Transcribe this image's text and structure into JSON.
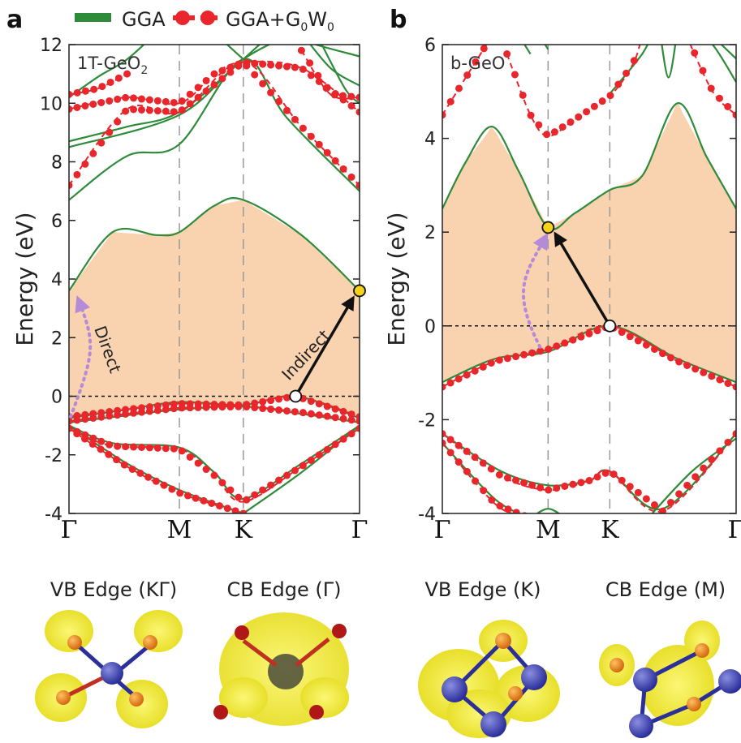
{
  "legend": {
    "gga": "GGA",
    "gw_main": "GGA+G",
    "gw_sub1": "0",
    "gw_mid": "W",
    "gw_sub2": "0"
  },
  "colors": {
    "gga": "#2e8b3a",
    "gw": "#e8262b",
    "gap_fill": "#f9d2b0",
    "arrow_direct": "#b58ad6",
    "cbm_marker": "#f5d21a"
  },
  "chart_data": [
    {
      "panel": "a",
      "type": "line",
      "label": "1T-GeO",
      "label_sub": "2",
      "ylabel": "Energy (eV)",
      "ylim": [
        -4,
        12
      ],
      "yticks": [
        -4,
        -2,
        0,
        2,
        4,
        6,
        8,
        10,
        12
      ],
      "kpoints": [
        {
          "label": "Γ",
          "x": 0
        },
        {
          "label": "M",
          "x": 0.38
        },
        {
          "label": "K",
          "x": 0.6
        },
        {
          "label": "Γ",
          "x": 1
        }
      ],
      "fermi_level": 0,
      "vbm": {
        "x": 0.78,
        "energy": 0
      },
      "cbm": {
        "x": 1,
        "energy": 3.6
      },
      "transitions": {
        "direct": "Direct",
        "indirect": "Indirect"
      },
      "series": [
        {
          "name": "GGA",
          "style": "solid",
          "bands": [
            [
              [
                0,
                -0.75
              ],
              [
                0.2,
                -0.45
              ],
              [
                0.38,
                -0.2
              ],
              [
                0.6,
                -0.3
              ],
              [
                0.78,
                0
              ],
              [
                1,
                -0.75
              ]
            ],
            [
              [
                0,
                -0.9
              ],
              [
                0.2,
                -0.65
              ],
              [
                0.38,
                -0.45
              ],
              [
                0.6,
                -0.35
              ],
              [
                0.8,
                -0.6
              ],
              [
                1,
                -0.9
              ]
            ],
            [
              [
                0,
                -1.0
              ],
              [
                0.15,
                -1.6
              ],
              [
                0.38,
                -1.75
              ],
              [
                0.5,
                -2.6
              ],
              [
                0.6,
                -3.5
              ],
              [
                0.8,
                -2.3
              ],
              [
                1,
                -1.0
              ]
            ],
            [
              [
                0,
                -1.0
              ],
              [
                0.2,
                -2.3
              ],
              [
                0.38,
                -3.2
              ],
              [
                0.6,
                -4.0
              ]
            ],
            [
              [
                0.6,
                -4.0
              ],
              [
                0.8,
                -2.6
              ],
              [
                1,
                -1.0
              ]
            ],
            [
              [
                0,
                3.6
              ],
              [
                0.15,
                5.6
              ],
              [
                0.3,
                5.5
              ],
              [
                0.38,
                5.6
              ],
              [
                0.5,
                6.5
              ],
              [
                0.6,
                6.7
              ],
              [
                0.8,
                5.5
              ],
              [
                1,
                3.6
              ]
            ],
            [
              [
                0,
                6.7
              ],
              [
                0.2,
                8.2
              ],
              [
                0.38,
                8.6
              ],
              [
                0.6,
                11.5
              ],
              [
                0.75,
                9.5
              ],
              [
                1,
                7.0
              ]
            ],
            [
              [
                0,
                8.5
              ],
              [
                0.38,
                9.6
              ],
              [
                0.6,
                11.5
              ],
              [
                0.8,
                12.5
              ]
            ],
            [
              [
                0,
                8.7
              ],
              [
                0.2,
                9.2
              ],
              [
                0.38,
                9.7
              ],
              [
                0.6,
                11.5
              ]
            ],
            [
              [
                0,
                10.2
              ],
              [
                0.1,
                10.9
              ],
              [
                0.2,
                11.5
              ],
              [
                0.3,
                12.4
              ]
            ],
            [
              [
                0.6,
                11.5
              ],
              [
                0.7,
                12.4
              ]
            ],
            [
              [
                0.6,
                11.5
              ],
              [
                0.5,
                12.4
              ]
            ],
            [
              [
                0.75,
                12.4
              ],
              [
                0.85,
                12.0
              ],
              [
                1,
                11.6
              ]
            ],
            [
              [
                0.8,
                12.4
              ],
              [
                0.9,
                11.2
              ],
              [
                1,
                10.6
              ]
            ],
            [
              [
                0.85,
                12.4
              ],
              [
                0.95,
                10.5
              ],
              [
                1,
                10.0
              ]
            ]
          ]
        },
        {
          "name": "GGA+G0W0",
          "style": "dashed-dots",
          "bands": [
            [
              [
                0,
                -0.7
              ],
              [
                0.2,
                -0.45
              ],
              [
                0.38,
                -0.25
              ],
              [
                0.6,
                -0.3
              ],
              [
                0.78,
                0
              ],
              [
                1,
                -0.7
              ]
            ],
            [
              [
                0,
                -0.85
              ],
              [
                0.2,
                -0.6
              ],
              [
                0.38,
                -0.4
              ],
              [
                0.6,
                -0.35
              ],
              [
                0.8,
                -0.55
              ],
              [
                1,
                -0.85
              ]
            ],
            [
              [
                0,
                -1.1
              ],
              [
                0.15,
                -1.7
              ],
              [
                0.38,
                -1.8
              ],
              [
                0.5,
                -2.7
              ],
              [
                0.6,
                -3.6
              ],
              [
                0.8,
                -2.4
              ],
              [
                1,
                -1.1
              ]
            ],
            [
              [
                0,
                -1.1
              ],
              [
                0.2,
                -2.4
              ],
              [
                0.38,
                -3.3
              ],
              [
                0.6,
                -4.0
              ]
            ],
            [
              [
                0,
                7.2
              ],
              [
                0.2,
                9.8
              ],
              [
                0.38,
                9.7
              ],
              [
                0.6,
                11.4
              ],
              [
                0.8,
                9.2
              ],
              [
                1,
                7.2
              ]
            ],
            [
              [
                0,
                9.8
              ],
              [
                0.2,
                10.2
              ],
              [
                0.38,
                10.0
              ],
              [
                0.5,
                11.0
              ],
              [
                0.6,
                11.4
              ],
              [
                0.8,
                11.2
              ],
              [
                1,
                9.7
              ]
            ],
            [
              [
                0,
                10.3
              ],
              [
                0.1,
                10.5
              ],
              [
                0.2,
                11.0
              ]
            ],
            [
              [
                0.8,
                11.8
              ],
              [
                0.9,
                10.3
              ],
              [
                1,
                10.2
              ]
            ]
          ]
        }
      ]
    },
    {
      "panel": "b",
      "type": "line",
      "label": "b-GeO",
      "ylabel": "Energy (eV)",
      "ylim": [
        -4,
        6
      ],
      "yticks": [
        -4,
        -2,
        0,
        2,
        4,
        6
      ],
      "kpoints": [
        {
          "label": "Γ",
          "x": 0
        },
        {
          "label": "M",
          "x": 0.36
        },
        {
          "label": "K",
          "x": 0.57
        },
        {
          "label": "Γ",
          "x": 1
        }
      ],
      "fermi_level": 0,
      "vbm": {
        "x": 0.57,
        "energy": 0
      },
      "cbm": {
        "x": 0.36,
        "energy": 2.1
      },
      "series": [
        {
          "name": "GGA",
          "style": "solid",
          "bands": [
            [
              [
                0,
                -1.2
              ],
              [
                0.18,
                -0.7
              ],
              [
                0.36,
                -0.55
              ],
              [
                0.57,
                0
              ],
              [
                0.8,
                -0.7
              ],
              [
                1,
                -1.2
              ]
            ],
            [
              [
                0,
                2.5
              ],
              [
                0.08,
                3.5
              ],
              [
                0.17,
                4.25
              ],
              [
                0.26,
                3.3
              ],
              [
                0.36,
                2.1
              ],
              [
                0.45,
                2.4
              ],
              [
                0.57,
                2.9
              ],
              [
                0.68,
                3.2
              ],
              [
                0.8,
                4.75
              ],
              [
                0.9,
                3.6
              ],
              [
                1,
                2.5
              ]
            ],
            [
              [
                0,
                -2.3
              ],
              [
                0.2,
                -3.1
              ],
              [
                0.36,
                -3.4
              ],
              [
                0.5,
                -3.3
              ],
              [
                0.57,
                -3.1
              ],
              [
                0.75,
                -3.9
              ],
              [
                1,
                -2.3
              ]
            ],
            [
              [
                0,
                -2.5
              ],
              [
                0.18,
                -3.7
              ],
              [
                0.3,
                -4.1
              ]
            ],
            [
              [
                0.7,
                -4.1
              ],
              [
                0.85,
                -3.1
              ],
              [
                1,
                -2.4
              ]
            ],
            [
              [
                0.3,
                -4.1
              ],
              [
                0.36,
                -3.9
              ],
              [
                0.42,
                -4.1
              ]
            ],
            [
              [
                0.57,
                4.95
              ],
              [
                0.68,
                5.8
              ],
              [
                0.72,
                6.3
              ]
            ],
            [
              [
                0.74,
                6.3
              ],
              [
                0.77,
                5.3
              ],
              [
                0.8,
                6.3
              ]
            ],
            [
              [
                0.85,
                6.3
              ],
              [
                0.92,
                6.0
              ],
              [
                1,
                5.2
              ]
            ],
            [
              [
                0.9,
                6.3
              ],
              [
                1,
                5.7
              ]
            ],
            [
              [
                0.25,
                6.3
              ],
              [
                0.3,
                5.8
              ]
            ],
            [
              [
                0.32,
                6.3
              ],
              [
                0.36,
                5.9
              ]
            ]
          ]
        },
        {
          "name": "GGA+G0W0",
          "style": "dashed-dots",
          "bands": [
            [
              [
                0,
                -1.3
              ],
              [
                0.18,
                -0.75
              ],
              [
                0.36,
                -0.5
              ],
              [
                0.57,
                0
              ],
              [
                0.8,
                -0.75
              ],
              [
                1,
                -1.3
              ]
            ],
            [
              [
                0,
                4.5
              ],
              [
                0.1,
                5.5
              ],
              [
                0.17,
                6.2
              ]
            ],
            [
              [
                0.22,
                5.8
              ],
              [
                0.3,
                4.5
              ],
              [
                0.36,
                4.05
              ],
              [
                0.45,
                4.4
              ],
              [
                0.57,
                4.9
              ],
              [
                0.65,
                5.6
              ],
              [
                0.68,
                6.2
              ]
            ],
            [
              [
                0.83,
                6.2
              ],
              [
                0.92,
                5.0
              ],
              [
                1,
                4.5
              ]
            ],
            [
              [
                0,
                -2.3
              ],
              [
                0.2,
                -3.2
              ],
              [
                0.36,
                -3.5
              ],
              [
                0.5,
                -3.3
              ],
              [
                0.57,
                -3.1
              ],
              [
                0.75,
                -3.95
              ],
              [
                1,
                -2.3
              ]
            ],
            [
              [
                0,
                -2.5
              ],
              [
                0.18,
                -3.8
              ],
              [
                0.28,
                -4.05
              ]
            ]
          ]
        }
      ]
    }
  ],
  "captions": {
    "a_vb": "VB Edge (KΓ)",
    "a_cb": "CB Edge (Γ)",
    "b_vb": "VB Edge (K)",
    "b_cb": "CB Edge (M)"
  }
}
